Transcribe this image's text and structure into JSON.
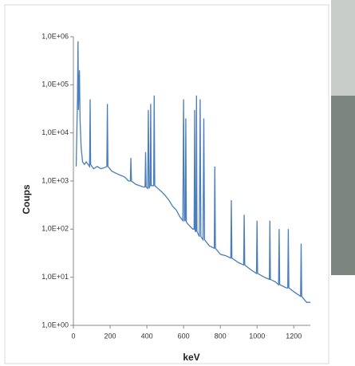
{
  "chart_data": {
    "type": "line",
    "log_y": true,
    "color": "#4a7ebb",
    "x_label": "keV",
    "y_label": "Coups",
    "xlim": [
      0,
      1290
    ],
    "xticks": [
      0,
      200,
      400,
      600,
      800,
      1000,
      1200
    ],
    "ylim": [
      1,
      1000000
    ],
    "yticks": [
      {
        "value": 1,
        "label": "1,0E+00"
      },
      {
        "value": 10,
        "label": "1,0E+01"
      },
      {
        "value": 100,
        "label": "1,0E+02"
      },
      {
        "value": 1000,
        "label": "1,0E+03"
      },
      {
        "value": 10000,
        "label": "1,0E+04"
      },
      {
        "value": 100000,
        "label": "1,0E+05"
      },
      {
        "value": 1000000,
        "label": "1,0E+06"
      }
    ],
    "x": [
      15,
      22,
      25,
      28,
      33,
      36,
      42,
      50,
      60,
      70,
      80,
      88,
      91,
      94,
      110,
      130,
      150,
      170,
      182,
      185,
      188,
      210,
      240,
      260,
      280,
      300,
      310,
      313,
      316,
      340,
      360,
      380,
      390,
      393,
      396,
      405,
      408,
      412,
      418,
      421,
      424,
      437,
      440,
      443,
      460,
      480,
      500,
      520,
      540,
      560,
      580,
      596,
      600,
      604,
      609,
      612,
      615,
      630,
      650,
      657,
      660,
      663,
      667,
      670,
      673,
      686,
      690,
      694,
      706,
      710,
      714,
      740,
      767,
      770,
      773,
      800,
      830,
      857,
      860,
      863,
      900,
      927,
      930,
      933,
      970,
      997,
      1000,
      1003,
      1040,
      1067,
      1070,
      1073,
      1100,
      1117,
      1120,
      1123,
      1160,
      1167,
      1170,
      1173,
      1200,
      1237,
      1240,
      1243,
      1270,
      1290
    ],
    "values": [
      2000,
      50000,
      800000,
      30000,
      200000,
      20000,
      5000,
      2500,
      2200,
      2500,
      2200,
      2000,
      50000,
      2200,
      1800,
      2000,
      1800,
      1900,
      2000,
      40000,
      2000,
      1600,
      1400,
      1300,
      1200,
      1000,
      1000,
      3000,
      1000,
      850,
      800,
      750,
      750,
      4000,
      750,
      700,
      30000,
      700,
      800,
      40000,
      800,
      800,
      60000,
      800,
      700,
      600,
      500,
      400,
      300,
      250,
      180,
      150,
      50000,
      150,
      150,
      20000,
      140,
      120,
      100,
      100,
      30000,
      90,
      90,
      60000,
      90,
      70,
      50000,
      70,
      60,
      20000,
      60,
      45,
      40,
      2000,
      40,
      30,
      28,
      25,
      400,
      25,
      20,
      18,
      200,
      18,
      14,
      12,
      150,
      12,
      10,
      9,
      150,
      9,
      8,
      7,
      100,
      7,
      6,
      6,
      100,
      6,
      5,
      4,
      50,
      4,
      3,
      3
    ]
  }
}
